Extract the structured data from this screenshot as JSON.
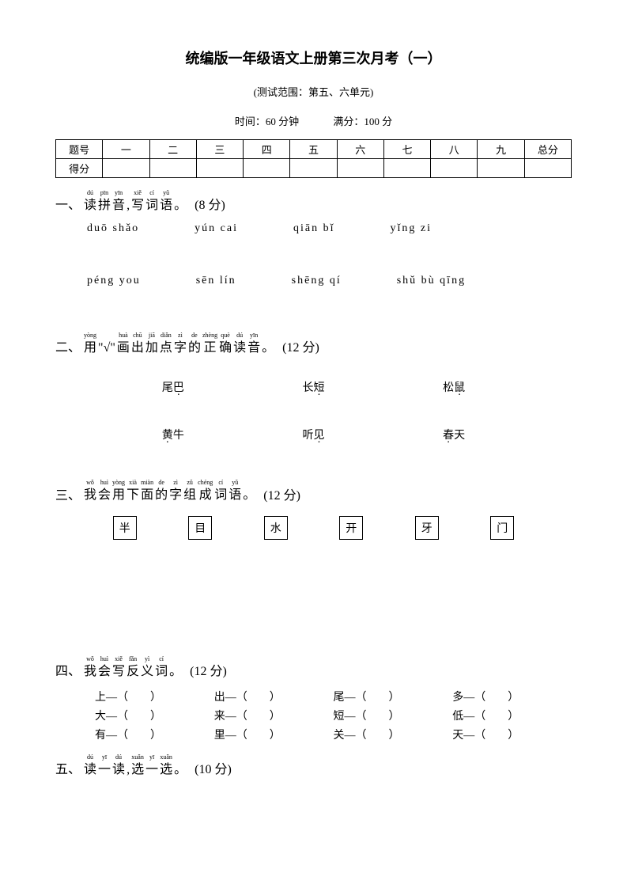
{
  "title": "统编版一年级语文上册第三次月考（一）",
  "subtitle": "(测试范围：第五、六单元)",
  "time_label": "时间：60 分钟",
  "score_label": "满分：100 分",
  "table": {
    "header_label": "题号",
    "score_row_label": "得分",
    "cols": [
      "一",
      "二",
      "三",
      "四",
      "五",
      "六",
      "七",
      "八",
      "九",
      "总分"
    ]
  },
  "section1": {
    "num": "一、",
    "ruby": [
      {
        "p": "dú",
        "h": "读"
      },
      {
        "p": "pīn",
        "h": "拼"
      },
      {
        "p": "yīn",
        "h": "音"
      },
      {
        "p": "",
        "h": ","
      },
      {
        "p": "xiě",
        "h": "写"
      },
      {
        "p": "cí",
        "h": "词"
      },
      {
        "p": "yǔ",
        "h": "语"
      },
      {
        "p": "",
        "h": "。"
      }
    ],
    "points": "(8 分)",
    "row1": [
      "duō  shǎo",
      "yún  cai",
      "qiān  bǐ",
      "yǐng  zi"
    ],
    "row2": [
      "péng you",
      "sēn   lín",
      "shēng  qí",
      "shǔ  bù  qīng"
    ]
  },
  "section2": {
    "num": "二、",
    "ruby": [
      {
        "p": "yòng",
        "h": "用"
      },
      {
        "p": "",
        "h": "\"√\""
      },
      {
        "p": "huà",
        "h": "画"
      },
      {
        "p": "chū",
        "h": "出"
      },
      {
        "p": "jiā",
        "h": "加"
      },
      {
        "p": "diǎn",
        "h": "点"
      },
      {
        "p": "zì",
        "h": "字"
      },
      {
        "p": "de",
        "h": "的"
      },
      {
        "p": "zhèng",
        "h": "正"
      },
      {
        "p": "què",
        "h": "确"
      },
      {
        "p": "dú",
        "h": "读"
      },
      {
        "p": "yīn",
        "h": "音"
      },
      {
        "p": "",
        "h": "。"
      }
    ],
    "points": "(12 分)",
    "row1": [
      {
        "pre": "尾",
        "dot": "巴"
      },
      {
        "pre": "长",
        "dot": "短"
      },
      {
        "pre": "松",
        "dot": "鼠"
      }
    ],
    "row2": [
      {
        "pre": "",
        "dot": "黄",
        "post": "牛"
      },
      {
        "pre": "听",
        "dot": "见"
      },
      {
        "pre": "",
        "dot": "春",
        "post": "天"
      }
    ]
  },
  "section3": {
    "num": "三、",
    "ruby": [
      {
        "p": "wǒ",
        "h": "我"
      },
      {
        "p": "huì",
        "h": "会"
      },
      {
        "p": "yòng",
        "h": "用"
      },
      {
        "p": "xià",
        "h": "下"
      },
      {
        "p": "miàn",
        "h": "面"
      },
      {
        "p": "de",
        "h": "的"
      },
      {
        "p": "zì",
        "h": "字"
      },
      {
        "p": "zǔ",
        "h": "组"
      },
      {
        "p": "chéng",
        "h": "成"
      },
      {
        "p": "cí",
        "h": "词"
      },
      {
        "p": "yǔ",
        "h": "语"
      },
      {
        "p": "",
        "h": "。"
      }
    ],
    "points": "(12 分)",
    "chars": [
      "半",
      "目",
      "水",
      "开",
      "牙",
      "门"
    ]
  },
  "section4": {
    "num": "四、",
    "ruby": [
      {
        "p": "wǒ",
        "h": "我"
      },
      {
        "p": "huì",
        "h": "会"
      },
      {
        "p": "xiě",
        "h": "写"
      },
      {
        "p": "fǎn",
        "h": "反"
      },
      {
        "p": "yì",
        "h": "义"
      },
      {
        "p": "cí",
        "h": "词"
      },
      {
        "p": "",
        "h": "。"
      }
    ],
    "points": "(12 分)",
    "rows": [
      [
        "上—（　　）",
        "出—（　　）",
        "尾—（　　）",
        "多—（　　）"
      ],
      [
        "大—（　　）",
        "来—（　　）",
        "短—（　　）",
        "低—（　　）"
      ],
      [
        "有—（　　）",
        "里—（　　）",
        "关—（　　）",
        "天—（　　）"
      ]
    ]
  },
  "section5": {
    "num": "五、",
    "ruby": [
      {
        "p": "dú",
        "h": "读"
      },
      {
        "p": "yī",
        "h": "一"
      },
      {
        "p": "dú",
        "h": "读"
      },
      {
        "p": "",
        "h": ","
      },
      {
        "p": "xuǎn",
        "h": "选"
      },
      {
        "p": "yī",
        "h": "一"
      },
      {
        "p": "xuǎn",
        "h": "选"
      },
      {
        "p": "",
        "h": "。"
      }
    ],
    "points": "(10 分)"
  }
}
